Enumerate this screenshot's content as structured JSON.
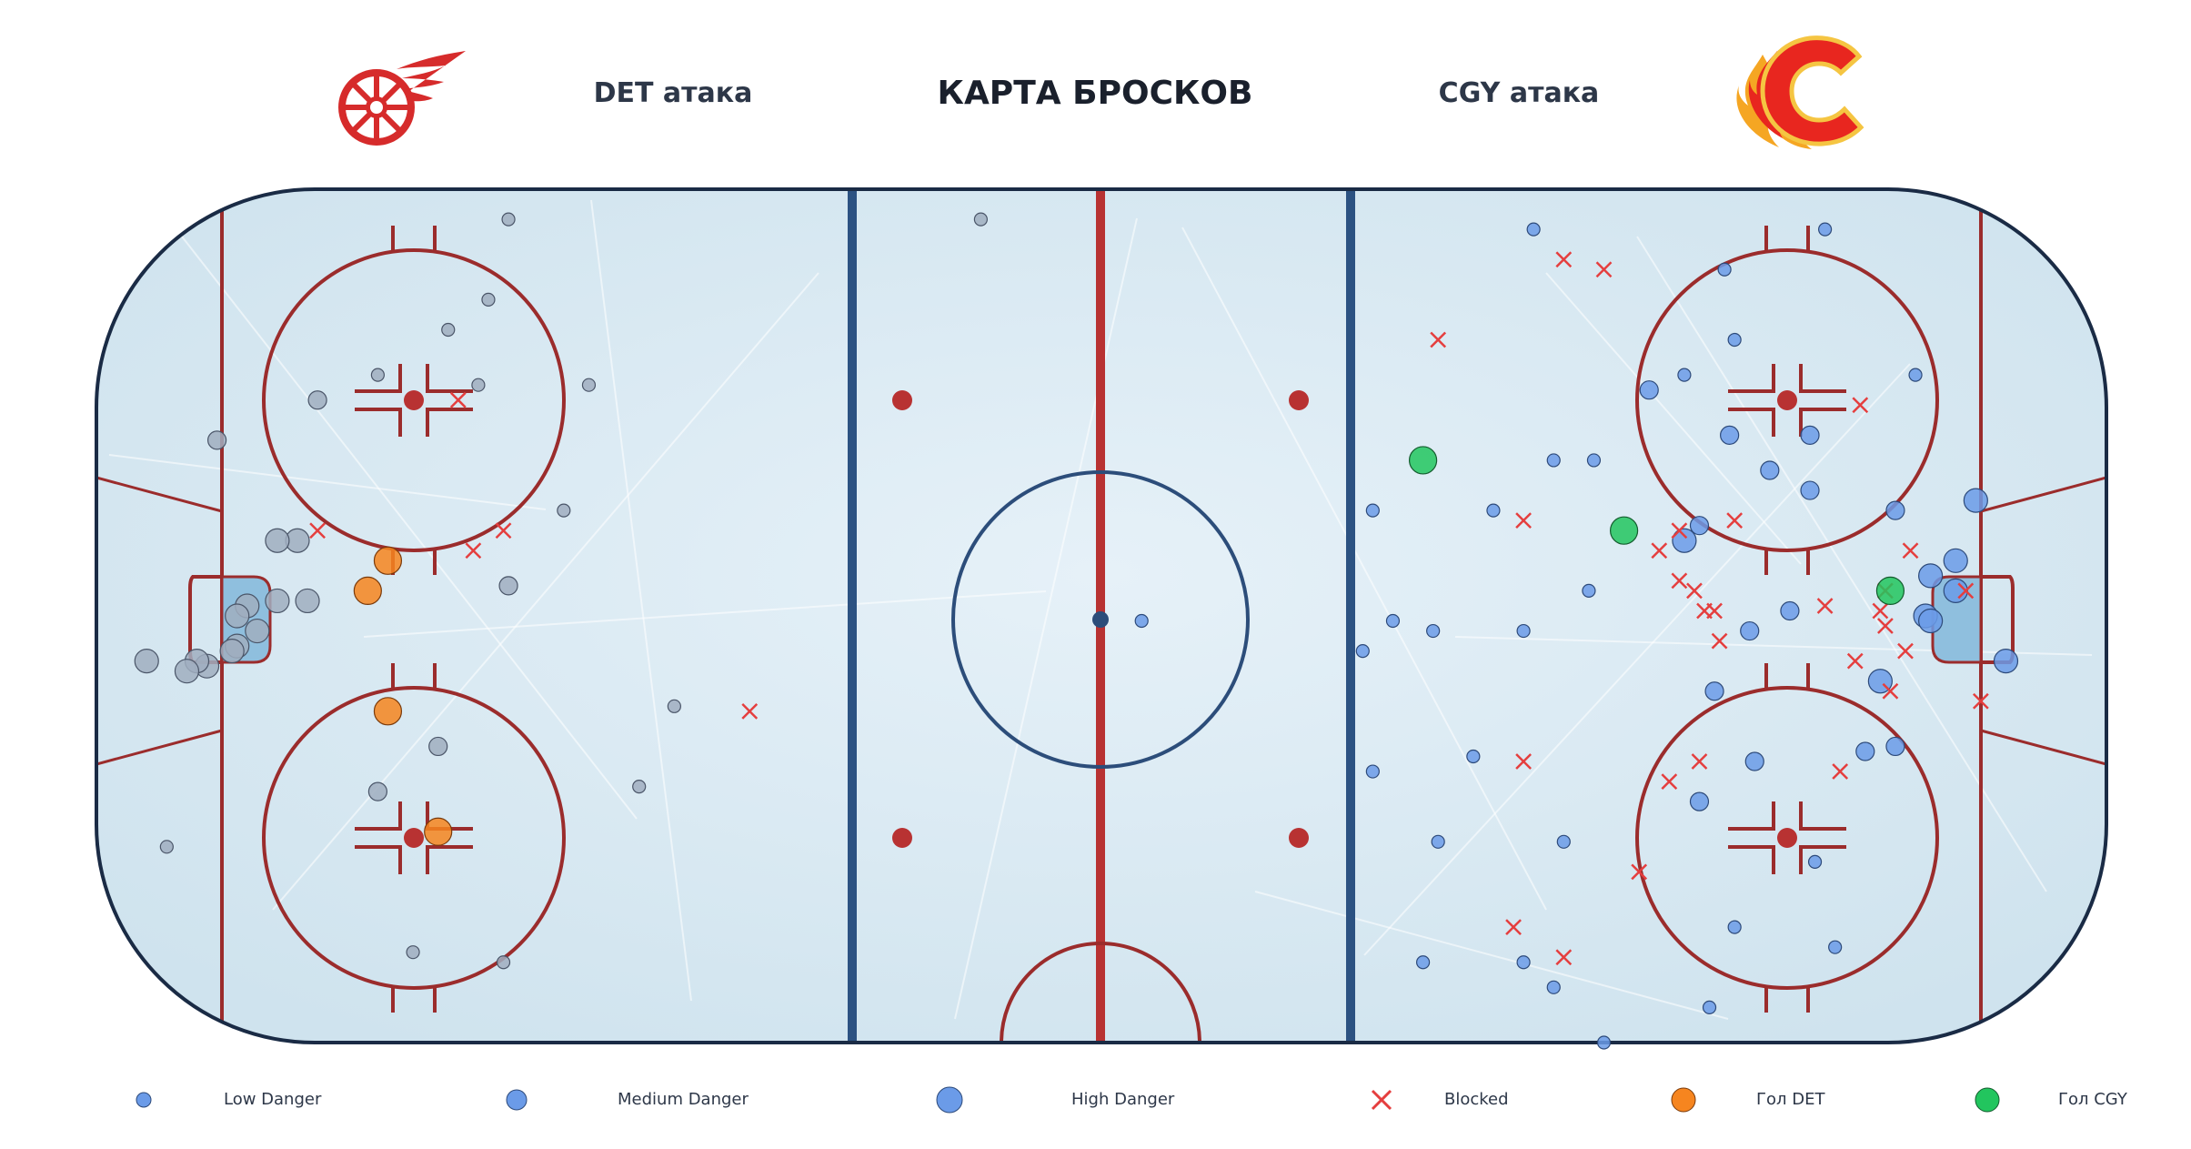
{
  "header": {
    "title": "КАРТА БРОСКОВ",
    "left_label": "DET атака",
    "right_label": "CGY атака"
  },
  "logos": {
    "left": "red-wings-logo",
    "right": "flames-logo"
  },
  "colors": {
    "det_shot": "#a0aec0",
    "cgy_shot": "#6b9be8",
    "blocked": "#e53e3e",
    "goal_det": "#f6851f",
    "goal_cgy": "#22c55e",
    "rink_line": "#9b2c2c",
    "blue_line": "#2c5282",
    "board": "#1a2b45"
  },
  "legend": [
    {
      "label": "Low Danger",
      "icon": "circle-small"
    },
    {
      "label": "Medium Danger",
      "icon": "circle-medium"
    },
    {
      "label": "High Danger",
      "icon": "circle-large"
    },
    {
      "label": "Blocked",
      "icon": "x-mark"
    },
    {
      "label": "Гол DET",
      "icon": "circle-orange"
    },
    {
      "label": "Гол CGY",
      "icon": "circle-green"
    }
  ],
  "chart_data": {
    "type": "scatter",
    "title": "КАРТА БРОСКОВ",
    "xlim": [
      -100,
      100
    ],
    "ylim": [
      -42.5,
      42.5
    ],
    "grid": false,
    "legend_position": "bottom",
    "series": [
      {
        "name": "DET",
        "points": [
          {
            "x": -59,
            "y": 39.5,
            "danger": "low"
          },
          {
            "x": -61,
            "y": 31.5,
            "danger": "low"
          },
          {
            "x": -65,
            "y": 28.5,
            "danger": "low"
          },
          {
            "x": -72,
            "y": 24,
            "danger": "low"
          },
          {
            "x": -62,
            "y": 23,
            "danger": "low"
          },
          {
            "x": -51,
            "y": 23,
            "danger": "low"
          },
          {
            "x": -78,
            "y": 21.5,
            "danger": "medium"
          },
          {
            "x": -88,
            "y": 17.5,
            "danger": "medium"
          },
          {
            "x": -53.5,
            "y": 10.5,
            "danger": "low"
          },
          {
            "x": -80,
            "y": 7.5,
            "danger": "high"
          },
          {
            "x": -82,
            "y": 7.5,
            "danger": "high"
          },
          {
            "x": -59,
            "y": 3,
            "danger": "medium"
          },
          {
            "x": -79,
            "y": 1.5,
            "danger": "high"
          },
          {
            "x": -82,
            "y": 1.5,
            "danger": "high"
          },
          {
            "x": -85,
            "y": 1,
            "danger": "high"
          },
          {
            "x": -86,
            "y": 0,
            "danger": "high"
          },
          {
            "x": -84,
            "y": -1.5,
            "danger": "high"
          },
          {
            "x": -86,
            "y": -3,
            "danger": "high"
          },
          {
            "x": -86.5,
            "y": -3.5,
            "danger": "high"
          },
          {
            "x": -89,
            "y": -5,
            "danger": "high"
          },
          {
            "x": -90,
            "y": -4.5,
            "danger": "high"
          },
          {
            "x": -91,
            "y": -5.5,
            "danger": "high"
          },
          {
            "x": -95,
            "y": -4.5,
            "danger": "high"
          },
          {
            "x": -42.5,
            "y": -9,
            "danger": "low"
          },
          {
            "x": -66,
            "y": -13,
            "danger": "medium"
          },
          {
            "x": -72,
            "y": -17.5,
            "danger": "medium"
          },
          {
            "x": -46,
            "y": -17,
            "danger": "low"
          },
          {
            "x": -93,
            "y": -23,
            "danger": "low"
          },
          {
            "x": -68.5,
            "y": -33.5,
            "danger": "low"
          },
          {
            "x": -59.5,
            "y": -34.5,
            "danger": "low"
          },
          {
            "x": -12,
            "y": 39.5,
            "danger": "low"
          }
        ]
      },
      {
        "name": "CGY",
        "points": [
          {
            "x": 43,
            "y": 38.5,
            "danger": "low"
          },
          {
            "x": 72,
            "y": 38.5,
            "danger": "low"
          },
          {
            "x": 62,
            "y": 34.5,
            "danger": "low"
          },
          {
            "x": 63,
            "y": 27.5,
            "danger": "low"
          },
          {
            "x": 58,
            "y": 24,
            "danger": "low"
          },
          {
            "x": 81,
            "y": 24,
            "danger": "low"
          },
          {
            "x": 54.5,
            "y": 22.5,
            "danger": "medium"
          },
          {
            "x": 62.5,
            "y": 18,
            "danger": "medium"
          },
          {
            "x": 70.5,
            "y": 18,
            "danger": "medium"
          },
          {
            "x": 45,
            "y": 15.5,
            "danger": "low"
          },
          {
            "x": 49,
            "y": 15.5,
            "danger": "low"
          },
          {
            "x": 66.5,
            "y": 14.5,
            "danger": "medium"
          },
          {
            "x": 70.5,
            "y": 12.5,
            "danger": "medium"
          },
          {
            "x": 27,
            "y": 10.5,
            "danger": "low"
          },
          {
            "x": 39,
            "y": 10.5,
            "danger": "low"
          },
          {
            "x": 79,
            "y": 10.5,
            "danger": "medium"
          },
          {
            "x": 87,
            "y": 11.5,
            "danger": "high"
          },
          {
            "x": 59.5,
            "y": 9,
            "danger": "medium"
          },
          {
            "x": 58,
            "y": 7.5,
            "danger": "high"
          },
          {
            "x": 85,
            "y": 5.5,
            "danger": "high"
          },
          {
            "x": 82.5,
            "y": 4,
            "danger": "high"
          },
          {
            "x": 48.5,
            "y": 2.5,
            "danger": "low"
          },
          {
            "x": 85,
            "y": 2.5,
            "danger": "high"
          },
          {
            "x": 68.5,
            "y": 0.5,
            "danger": "medium"
          },
          {
            "x": 82,
            "y": 0,
            "danger": "high"
          },
          {
            "x": 82.5,
            "y": -0.5,
            "danger": "high"
          },
          {
            "x": 29,
            "y": -0.5,
            "danger": "low"
          },
          {
            "x": 33,
            "y": -1.5,
            "danger": "low"
          },
          {
            "x": 42,
            "y": -1.5,
            "danger": "low"
          },
          {
            "x": 64.5,
            "y": -1.5,
            "danger": "medium"
          },
          {
            "x": 26,
            "y": -3.5,
            "danger": "low"
          },
          {
            "x": 90,
            "y": -4.5,
            "danger": "high"
          },
          {
            "x": 77.5,
            "y": -6.5,
            "danger": "high"
          },
          {
            "x": 61,
            "y": -7.5,
            "danger": "medium"
          },
          {
            "x": 79,
            "y": -13,
            "danger": "medium"
          },
          {
            "x": 76,
            "y": -13.5,
            "danger": "medium"
          },
          {
            "x": 37,
            "y": -14,
            "danger": "low"
          },
          {
            "x": 65,
            "y": -14.5,
            "danger": "medium"
          },
          {
            "x": 27,
            "y": -15.5,
            "danger": "low"
          },
          {
            "x": 59.5,
            "y": -18.5,
            "danger": "medium"
          },
          {
            "x": 33.5,
            "y": -22.5,
            "danger": "low"
          },
          {
            "x": 46,
            "y": -22.5,
            "danger": "low"
          },
          {
            "x": 71,
            "y": -24.5,
            "danger": "low"
          },
          {
            "x": 63,
            "y": -31,
            "danger": "low"
          },
          {
            "x": 73,
            "y": -33,
            "danger": "low"
          },
          {
            "x": 32,
            "y": -34.5,
            "danger": "low"
          },
          {
            "x": 42,
            "y": -34.5,
            "danger": "low"
          },
          {
            "x": 45,
            "y": -37,
            "danger": "low"
          },
          {
            "x": 60.5,
            "y": -39,
            "danger": "low"
          },
          {
            "x": 50,
            "y": -42.5,
            "danger": "low"
          },
          {
            "x": 4,
            "y": -0.5,
            "danger": "low"
          }
        ]
      }
    ],
    "blocked": [
      {
        "x": -64,
        "y": 21.5
      },
      {
        "x": -78,
        "y": 8.5
      },
      {
        "x": -59.5,
        "y": 8.5
      },
      {
        "x": -62.5,
        "y": 6.5
      },
      {
        "x": -35,
        "y": -9.5
      },
      {
        "x": 46,
        "y": 35.5
      },
      {
        "x": 50,
        "y": 34.5
      },
      {
        "x": 33.5,
        "y": 27.5
      },
      {
        "x": 75.5,
        "y": 21
      },
      {
        "x": 42,
        "y": 9.5
      },
      {
        "x": 57.5,
        "y": 8.5
      },
      {
        "x": 63,
        "y": 9.5
      },
      {
        "x": 55.5,
        "y": 6.5
      },
      {
        "x": 57.5,
        "y": 3.5
      },
      {
        "x": 59,
        "y": 2.5
      },
      {
        "x": 60,
        "y": 0.5
      },
      {
        "x": 61,
        "y": 0.5
      },
      {
        "x": 61.5,
        "y": -2.5
      },
      {
        "x": 72,
        "y": 1
      },
      {
        "x": 77.5,
        "y": 0.5
      },
      {
        "x": 78,
        "y": 2.5
      },
      {
        "x": 80.5,
        "y": 6.5
      },
      {
        "x": 86,
        "y": 2.5
      },
      {
        "x": 78,
        "y": -1
      },
      {
        "x": 75,
        "y": -4.5
      },
      {
        "x": 80,
        "y": -3.5
      },
      {
        "x": 78.5,
        "y": -7.5
      },
      {
        "x": 87.5,
        "y": -8.5
      },
      {
        "x": 42,
        "y": -14.5
      },
      {
        "x": 59.5,
        "y": -14.5
      },
      {
        "x": 56.5,
        "y": -16.5
      },
      {
        "x": 73.5,
        "y": -15.5
      },
      {
        "x": 53.5,
        "y": -25.5
      },
      {
        "x": 41,
        "y": -31
      },
      {
        "x": 46,
        "y": -34
      }
    ],
    "goals_det": [
      {
        "x": -71,
        "y": 5.5
      },
      {
        "x": -73,
        "y": 2.5
      },
      {
        "x": -71,
        "y": -9.5
      },
      {
        "x": -66,
        "y": -21.5
      }
    ],
    "goals_cgy": [
      {
        "x": 32,
        "y": 15.5
      },
      {
        "x": 52,
        "y": 8.5
      },
      {
        "x": 78.5,
        "y": 2.5
      }
    ]
  }
}
